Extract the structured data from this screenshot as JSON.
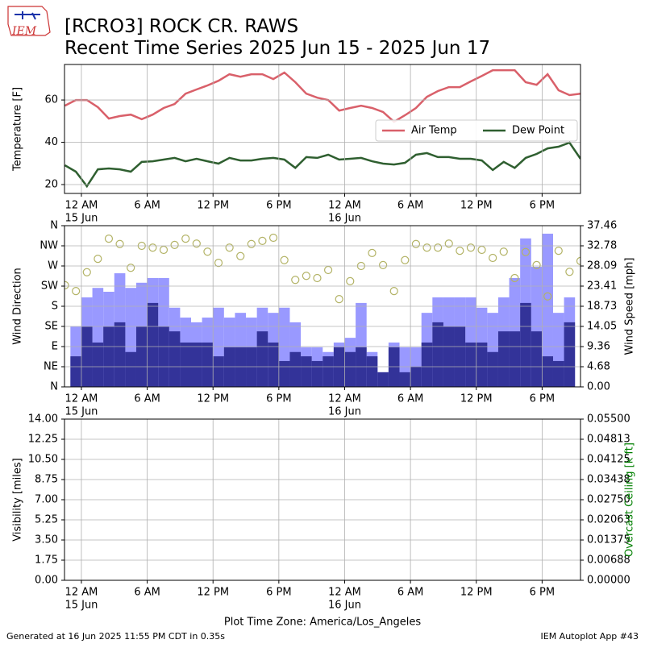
{
  "header": {
    "logo_text": "IEM",
    "title": "[RCRO3] ROCK CR. RAWS",
    "subtitle": "Recent Time Series 2025 Jun 15 - 2025 Jun 17"
  },
  "footer": {
    "left": "Generated at 16 Jun 2025 11:55 PM CDT in 0.35s",
    "right": "IEM Autoplot App #43"
  },
  "chart_data": [
    {
      "type": "line",
      "ylabel": "Temperature [F]",
      "grid": true,
      "legend": "center right",
      "xlim": [
        -1.54,
        45.5
      ],
      "xticks": [
        {
          "value": 0,
          "label": "12 AM"
        },
        {
          "value": 6,
          "label": "6 AM"
        },
        {
          "value": 12,
          "label": "12 PM"
        },
        {
          "value": 18,
          "label": "6 PM"
        },
        {
          "value": 24,
          "label": "12 AM"
        },
        {
          "value": 30,
          "label": "6 AM"
        },
        {
          "value": 36,
          "label": "12 PM"
        },
        {
          "value": 42,
          "label": "6 PM"
        }
      ],
      "xtick_dates": [
        {
          "value": 0,
          "label": "15 Jun"
        },
        {
          "value": 24,
          "label": "16 Jun"
        }
      ],
      "ylim": [
        15.8,
        76.8
      ],
      "yticks": [
        20,
        40,
        60
      ],
      "series": [
        {
          "name": "Air Temp",
          "type": "line",
          "color": "#d9606a",
          "x": [
            -1.5,
            -0.5,
            0.5,
            1.5,
            2.5,
            3.5,
            4.5,
            5.5,
            6.5,
            7.5,
            8.5,
            9.5,
            10.5,
            11.5,
            12.5,
            13.5,
            14.5,
            15.5,
            16.5,
            17.5,
            18.5,
            19.5,
            20.5,
            21.5,
            22.5,
            23.5,
            24.5,
            25.5,
            26.5,
            27.5,
            28.5,
            29.5,
            30.5,
            31.5,
            32.5,
            33.5,
            34.5,
            35.5,
            36.5,
            37.5,
            38.5,
            39.5,
            40.5,
            41.5,
            42.5,
            43.5,
            44.5,
            45.5
          ],
          "values": [
            57.3,
            60,
            60,
            56.6,
            51.2,
            52.4,
            53.1,
            50.9,
            53.1,
            56.2,
            58.1,
            63,
            65,
            66.9,
            69.1,
            72.2,
            71,
            72.2,
            72.2,
            69.9,
            73,
            68.4,
            63,
            61.1,
            60,
            55,
            56.2,
            57.3,
            56.2,
            54.3,
            49.7,
            52.8,
            56.2,
            61.5,
            64.2,
            66.1,
            66.1,
            68.8,
            71.4,
            74.1,
            74.1,
            74.1,
            68.4,
            67.2,
            72.2,
            64.6,
            62.3,
            63
          ]
        },
        {
          "name": "Dew Point",
          "type": "line",
          "color": "#2f5f30",
          "x": [
            -1.5,
            -0.5,
            0.5,
            1.5,
            2.5,
            3.5,
            4.5,
            5.5,
            6.5,
            7.5,
            8.5,
            9.5,
            10.5,
            11.5,
            12.5,
            13.5,
            14.5,
            15.5,
            16.5,
            17.5,
            18.5,
            19.5,
            20.5,
            21.5,
            22.5,
            23.5,
            24.5,
            25.5,
            26.5,
            27.5,
            28.5,
            29.5,
            30.5,
            31.5,
            32.5,
            33.5,
            34.5,
            35.5,
            36.5,
            37.5,
            38.5,
            39.5,
            40.5,
            41.5,
            42.5,
            43.5,
            44.5,
            45.5
          ],
          "values": [
            29.1,
            26.1,
            19.2,
            27.2,
            27.6,
            27.2,
            26.1,
            30.7,
            31,
            31.8,
            32.6,
            31,
            32.2,
            31,
            29.9,
            32.6,
            31.4,
            31.4,
            32.2,
            32.6,
            31.8,
            27.9,
            33,
            32.6,
            34.1,
            31.8,
            32.2,
            32.6,
            31,
            29.9,
            29.5,
            30.3,
            34.1,
            34.9,
            33,
            33,
            32.2,
            32.2,
            31.4,
            26.9,
            30.7,
            27.9,
            32.6,
            34.5,
            37.1,
            37.9,
            39.8,
            32.2
          ]
        }
      ]
    },
    {
      "type": "combo",
      "ylabel": "Wind Direction",
      "y2label": "Wind Speed [mph]",
      "grid": true,
      "xlim": [
        -1.54,
        45.5
      ],
      "xticks": [
        {
          "value": 0,
          "label": "12 AM"
        },
        {
          "value": 6,
          "label": "6 AM"
        },
        {
          "value": 12,
          "label": "12 PM"
        },
        {
          "value": 18,
          "label": "6 PM"
        },
        {
          "value": 24,
          "label": "12 AM"
        },
        {
          "value": 30,
          "label": "6 AM"
        },
        {
          "value": 36,
          "label": "12 PM"
        },
        {
          "value": 42,
          "label": "6 PM"
        }
      ],
      "xtick_dates": [
        {
          "value": 0,
          "label": "15 Jun"
        },
        {
          "value": 24,
          "label": "16 Jun"
        }
      ],
      "ylim": [
        0,
        360
      ],
      "yticks": [
        {
          "value": 0,
          "label": "N"
        },
        {
          "value": 45,
          "label": "NE"
        },
        {
          "value": 90,
          "label": "E"
        },
        {
          "value": 135,
          "label": "SE"
        },
        {
          "value": 180,
          "label": "S"
        },
        {
          "value": 225,
          "label": "SW"
        },
        {
          "value": 270,
          "label": "W"
        },
        {
          "value": 315,
          "label": "NW"
        },
        {
          "value": 360,
          "label": "N"
        }
      ],
      "y2lim": [
        0,
        37.46
      ],
      "y2ticks": [
        {
          "value": 0,
          "label": "0.00"
        },
        4.68,
        9.36,
        14.05,
        18.73,
        23.41,
        28.09,
        32.78,
        37.46
      ],
      "series": [
        {
          "type": "bar",
          "axis": "y2",
          "color": "#9999ff",
          "x": [
            -0.5,
            0.5,
            1.5,
            2.5,
            3.5,
            4.5,
            5.5,
            6.5,
            7.5,
            8.5,
            9.5,
            10.5,
            11.5,
            12.5,
            13.5,
            14.5,
            15.5,
            16.5,
            17.5,
            18.5,
            19.5,
            20.5,
            21.5,
            22.5,
            23.5,
            24.5,
            25.5,
            26.5,
            27.5,
            28.5,
            29.5,
            30.5,
            31.5,
            32.5,
            33.5,
            34.5,
            35.5,
            36.5,
            37.5,
            38.5,
            39.5,
            40.5,
            41.5,
            42.5,
            43.5,
            44.5
          ],
          "values": [
            14,
            20.8,
            23,
            22.1,
            26.4,
            23,
            24.2,
            25.3,
            25.3,
            18.4,
            16.1,
            15,
            16.1,
            18.4,
            16.1,
            17.2,
            16.1,
            18.4,
            17.2,
            18.4,
            15,
            9.2,
            9.2,
            8.1,
            10.3,
            11.4,
            19.5,
            8.1,
            3.4,
            10.3,
            9.2,
            9.2,
            17.2,
            20.8,
            20.8,
            20.8,
            20.8,
            18.4,
            17.2,
            20.8,
            25.3,
            34.5,
            27.9,
            35.6,
            17.2,
            20.8
          ]
        },
        {
          "type": "bar",
          "axis": "y2",
          "color": "#333399",
          "x": [
            -0.5,
            0.5,
            1.5,
            2.5,
            3.5,
            4.5,
            5.5,
            6.5,
            7.5,
            8.5,
            9.5,
            10.5,
            11.5,
            12.5,
            13.5,
            14.5,
            15.5,
            16.5,
            17.5,
            18.5,
            19.5,
            20.5,
            21.5,
            22.5,
            23.5,
            24.5,
            25.5,
            26.5,
            27.5,
            28.5,
            29.5,
            30.5,
            31.5,
            32.5,
            33.5,
            34.5,
            35.5,
            36.5,
            37.5,
            38.5,
            39.5,
            40.5,
            41.5,
            42.5,
            43.5,
            44.5
          ],
          "values": [
            7.1,
            14,
            10.3,
            14,
            15,
            8.1,
            14,
            19.5,
            14,
            12.9,
            10.3,
            10.3,
            10.3,
            7.1,
            9.2,
            9.2,
            9.2,
            12.9,
            10.3,
            6,
            8.1,
            7.1,
            6,
            7.1,
            9.2,
            8.1,
            9.2,
            7.1,
            3.4,
            9.2,
            3.4,
            4.7,
            10.3,
            15,
            14,
            14,
            10.3,
            10.3,
            8.1,
            12.9,
            12.9,
            19.5,
            12.9,
            7.1,
            6,
            15
          ]
        },
        {
          "type": "scatter",
          "color": "#b3b366",
          "x": [
            -1.5,
            -0.5,
            0.5,
            1.5,
            2.5,
            3.5,
            4.5,
            5.5,
            6.5,
            7.5,
            8.5,
            9.5,
            10.5,
            11.5,
            12.5,
            13.5,
            14.5,
            15.5,
            16.5,
            17.5,
            18.5,
            19.5,
            20.5,
            21.5,
            22.5,
            23.5,
            24.5,
            25.5,
            26.5,
            27.5,
            28.5,
            29.5,
            30.5,
            31.5,
            32.5,
            33.5,
            34.5,
            35.5,
            36.5,
            37.5,
            38.5,
            39.5,
            40.5,
            41.5,
            42.5,
            43.5,
            44.5,
            45.5
          ],
          "values": [
            227,
            214,
            256,
            286,
            331,
            319,
            266,
            315,
            311,
            306,
            317,
            331,
            320,
            302,
            277,
            311,
            292,
            319,
            326,
            333,
            283,
            239,
            248,
            243,
            261,
            196,
            236,
            270,
            299,
            272,
            214,
            283,
            319,
            311,
            311,
            320,
            304,
            311,
            306,
            288,
            302,
            243,
            301,
            272,
            202,
            304,
            257,
            281
          ]
        }
      ]
    },
    {
      "type": "line",
      "ylabel": "Visibility [miles]",
      "y2label": "Overcast Ceiling [k ft]",
      "y2label_color": "#008000",
      "grid": true,
      "xlabel": "Plot Time Zone: America/Los_Angeles",
      "xlim": [
        -1.54,
        45.5
      ],
      "xticks": [
        {
          "value": 0,
          "label": "12 AM"
        },
        {
          "value": 6,
          "label": "6 AM"
        },
        {
          "value": 12,
          "label": "12 PM"
        },
        {
          "value": 18,
          "label": "6 PM"
        },
        {
          "value": 24,
          "label": "12 AM"
        },
        {
          "value": 30,
          "label": "6 AM"
        },
        {
          "value": 36,
          "label": "12 PM"
        },
        {
          "value": 42,
          "label": "6 PM"
        }
      ],
      "xtick_dates": [
        {
          "value": 0,
          "label": "15 Jun"
        },
        {
          "value": 24,
          "label": "16 Jun"
        }
      ],
      "ylim": [
        0,
        14
      ],
      "yticks": [
        {
          "value": 0,
          "label": "0.00"
        },
        1.75,
        {
          "value": 3.5,
          "label": "3.50"
        },
        5.25,
        {
          "value": 7,
          "label": "7.00"
        },
        8.75,
        {
          "value": 10.5,
          "label": "10.50"
        },
        12.25,
        {
          "value": 14,
          "label": "14.00"
        }
      ],
      "y2lim": [
        0,
        0.055
      ],
      "y2ticks": [
        {
          "value": 0,
          "label": "0.00000"
        },
        {
          "value": 0.006875,
          "label": "0.00688"
        },
        {
          "value": 0.01375,
          "label": "0.01375"
        },
        {
          "value": 0.020625,
          "label": "0.02063"
        },
        {
          "value": 0.0275,
          "label": "0.02750"
        },
        {
          "value": 0.034375,
          "label": "0.03438"
        },
        {
          "value": 0.04125,
          "label": "0.04125"
        },
        {
          "value": 0.048125,
          "label": "0.04813"
        },
        {
          "value": 0.055,
          "label": "0.05500"
        }
      ],
      "series": []
    }
  ]
}
